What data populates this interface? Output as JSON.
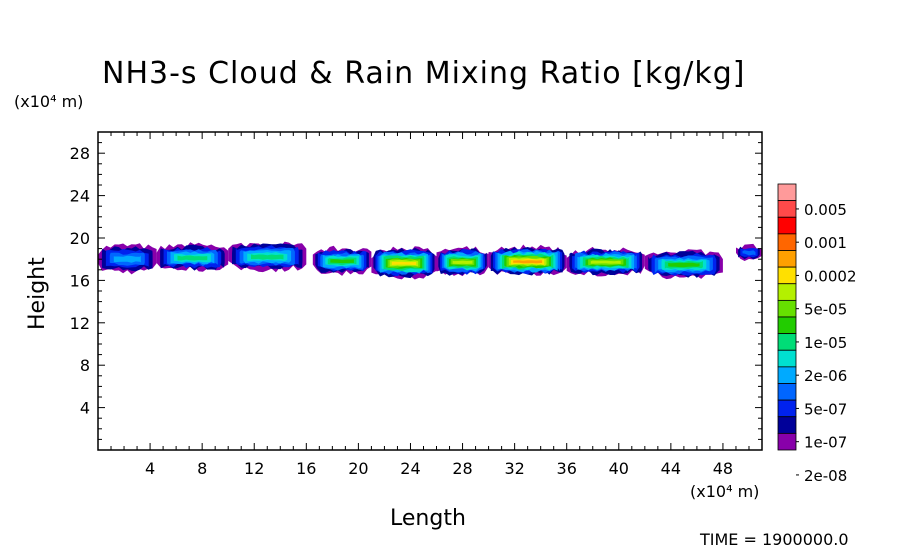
{
  "chart_data": {
    "type": "heatmap",
    "title": "NH3-s Cloud & Rain Mixing Ratio [kg/kg]",
    "xlabel": "Length",
    "ylabel": "Height",
    "x_unit": "(x10⁴ m)",
    "y_unit": "(x10⁴ m)",
    "xlim": [
      0,
      51
    ],
    "ylim": [
      0,
      30
    ],
    "x_ticks": [
      4,
      8,
      12,
      16,
      20,
      24,
      28,
      32,
      36,
      40,
      44,
      48
    ],
    "y_ticks": [
      4,
      8,
      12,
      16,
      20,
      24,
      28
    ],
    "colorbar_labels": [
      "0.005",
      "0.001",
      "0.0002",
      "5e-05",
      "1e-05",
      "2e-06",
      "5e-07",
      "1e-07",
      "2e-08"
    ],
    "colorbar_colors": [
      "#ff9a9a",
      "#ff4a4a",
      "#ff0000",
      "#ff6600",
      "#ffa000",
      "#ffe000",
      "#b4f000",
      "#66e000",
      "#22cc00",
      "#00dd77",
      "#00e0d0",
      "#00aaff",
      "#0066ff",
      "#0022ee",
      "#000099",
      "#8800aa"
    ],
    "cloud_layer": [
      {
        "x": [
          0,
          4.5
        ],
        "bottom": 17.0,
        "top": 19.6,
        "peak": 4
      },
      {
        "x": [
          4.5,
          10
        ],
        "bottom": 17.2,
        "top": 19.6,
        "peak": 6
      },
      {
        "x": [
          10,
          16
        ],
        "bottom": 17.2,
        "top": 19.8,
        "peak": 6
      },
      {
        "x": [
          16.5,
          21
        ],
        "bottom": 16.9,
        "top": 19.3,
        "peak": 7
      },
      {
        "x": [
          21,
          26
        ],
        "bottom": 16.5,
        "top": 19.3,
        "peak": 10
      },
      {
        "x": [
          26,
          30
        ],
        "bottom": 16.7,
        "top": 19.3,
        "peak": 9
      },
      {
        "x": [
          30,
          36
        ],
        "bottom": 16.7,
        "top": 19.4,
        "peak": 11
      },
      {
        "x": [
          36,
          42
        ],
        "bottom": 16.8,
        "top": 19.2,
        "peak": 9
      },
      {
        "x": [
          42,
          48
        ],
        "bottom": 16.5,
        "top": 19.0,
        "peak": 7
      },
      {
        "x": [
          49,
          51
        ],
        "bottom": 18.3,
        "top": 19.5,
        "peak": 3
      }
    ],
    "time_label": "TIME = 1900000.0"
  }
}
